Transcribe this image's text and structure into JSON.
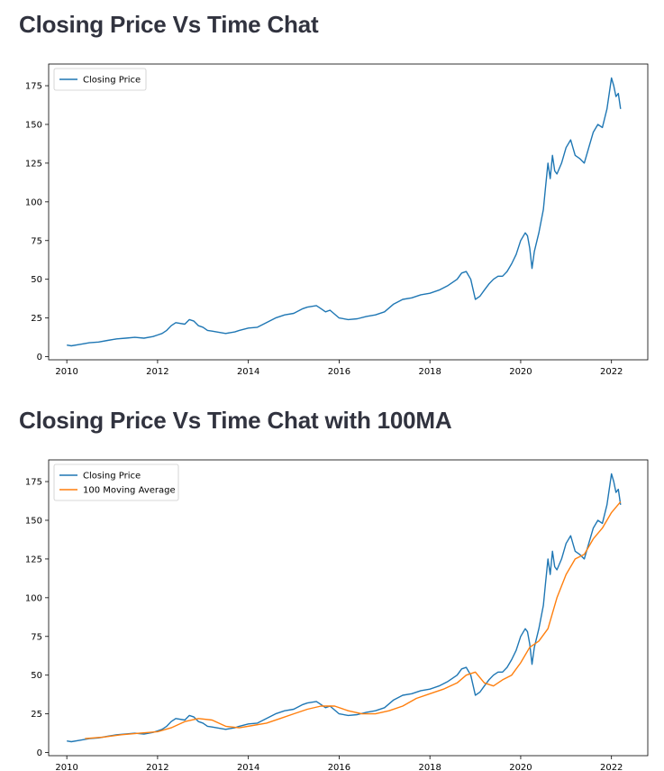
{
  "headings": {
    "chart1_title": "Closing Price Vs Time Chat",
    "chart2_title": "Closing Price Vs Time Chat with 100MA"
  },
  "chart_data": [
    {
      "type": "line",
      "title": "",
      "xlabel": "",
      "ylabel": "",
      "xlim": [
        2009.6,
        2022.8
      ],
      "ylim": [
        -2,
        189
      ],
      "xticks": [
        2010,
        2012,
        2014,
        2016,
        2018,
        2020,
        2022
      ],
      "yticks": [
        0,
        25,
        50,
        75,
        100,
        125,
        150,
        175
      ],
      "grid": false,
      "legend": "top-left",
      "series": [
        {
          "name": "Closing Price",
          "color": "#1f77b4",
          "x": [
            2010.0,
            2010.1,
            2010.3,
            2010.5,
            2010.7,
            2010.9,
            2011.1,
            2011.3,
            2011.5,
            2011.7,
            2011.9,
            2012.0,
            2012.1,
            2012.2,
            2012.3,
            2012.4,
            2012.6,
            2012.7,
            2012.8,
            2012.9,
            2013.0,
            2013.1,
            2013.2,
            2013.3,
            2013.4,
            2013.5,
            2013.6,
            2013.7,
            2013.8,
            2014.0,
            2014.2,
            2014.4,
            2014.6,
            2014.8,
            2015.0,
            2015.2,
            2015.3,
            2015.5,
            2015.6,
            2015.7,
            2015.8,
            2016.0,
            2016.2,
            2016.4,
            2016.6,
            2016.8,
            2017.0,
            2017.2,
            2017.4,
            2017.6,
            2017.8,
            2018.0,
            2018.2,
            2018.4,
            2018.6,
            2018.7,
            2018.8,
            2018.9,
            2019.0,
            2019.1,
            2019.2,
            2019.3,
            2019.4,
            2019.5,
            2019.6,
            2019.7,
            2019.8,
            2019.9,
            2020.0,
            2020.1,
            2020.15,
            2020.2,
            2020.25,
            2020.3,
            2020.4,
            2020.5,
            2020.55,
            2020.6,
            2020.65,
            2020.7,
            2020.75,
            2020.8,
            2020.9,
            2021.0,
            2021.1,
            2021.2,
            2021.3,
            2021.4,
            2021.5,
            2021.6,
            2021.7,
            2021.8,
            2021.9,
            2022.0,
            2022.05,
            2022.1,
            2022.15,
            2022.2
          ],
          "y": [
            7.5,
            7.0,
            8.0,
            9.0,
            9.5,
            10.5,
            11.5,
            12.0,
            12.5,
            12.0,
            13.0,
            14.0,
            15.0,
            17.0,
            20.0,
            22.0,
            21.0,
            24.0,
            23.0,
            20.0,
            19.0,
            17.0,
            16.5,
            16.0,
            15.5,
            15.0,
            15.5,
            16.0,
            17.0,
            18.5,
            19.0,
            22.0,
            25.0,
            27.0,
            28.0,
            31.0,
            32.0,
            33.0,
            31.0,
            29.0,
            30.0,
            25.0,
            24.0,
            24.5,
            26.0,
            27.0,
            29.0,
            34.0,
            37.0,
            38.0,
            40.0,
            41.0,
            43.0,
            46.0,
            50.0,
            54.0,
            55.0,
            50.0,
            37.0,
            39.0,
            43.0,
            47.0,
            50.0,
            52.0,
            52.0,
            55.0,
            60.0,
            66.0,
            75.0,
            80.0,
            78.0,
            70.0,
            57.0,
            68.0,
            80.0,
            95.0,
            110.0,
            125.0,
            115.0,
            130.0,
            120.0,
            118.0,
            125.0,
            135.0,
            140.0,
            130.0,
            128.0,
            125.0,
            135.0,
            145.0,
            150.0,
            148.0,
            160.0,
            180.0,
            175.0,
            168.0,
            170.0,
            160.0
          ]
        }
      ]
    },
    {
      "type": "line",
      "title": "",
      "xlabel": "",
      "ylabel": "",
      "xlim": [
        2009.6,
        2022.8
      ],
      "ylim": [
        -2,
        189
      ],
      "xticks": [
        2010,
        2012,
        2014,
        2016,
        2018,
        2020,
        2022
      ],
      "yticks": [
        0,
        25,
        50,
        75,
        100,
        125,
        150,
        175
      ],
      "grid": false,
      "legend": "top-left",
      "series": [
        {
          "name": "Closing Price",
          "color": "#1f77b4",
          "x": [
            2010.0,
            2010.1,
            2010.3,
            2010.5,
            2010.7,
            2010.9,
            2011.1,
            2011.3,
            2011.5,
            2011.7,
            2011.9,
            2012.0,
            2012.1,
            2012.2,
            2012.3,
            2012.4,
            2012.6,
            2012.7,
            2012.8,
            2012.9,
            2013.0,
            2013.1,
            2013.2,
            2013.3,
            2013.4,
            2013.5,
            2013.6,
            2013.7,
            2013.8,
            2014.0,
            2014.2,
            2014.4,
            2014.6,
            2014.8,
            2015.0,
            2015.2,
            2015.3,
            2015.5,
            2015.6,
            2015.7,
            2015.8,
            2016.0,
            2016.2,
            2016.4,
            2016.6,
            2016.8,
            2017.0,
            2017.2,
            2017.4,
            2017.6,
            2017.8,
            2018.0,
            2018.2,
            2018.4,
            2018.6,
            2018.7,
            2018.8,
            2018.9,
            2019.0,
            2019.1,
            2019.2,
            2019.3,
            2019.4,
            2019.5,
            2019.6,
            2019.7,
            2019.8,
            2019.9,
            2020.0,
            2020.1,
            2020.15,
            2020.2,
            2020.25,
            2020.3,
            2020.4,
            2020.5,
            2020.55,
            2020.6,
            2020.65,
            2020.7,
            2020.75,
            2020.8,
            2020.9,
            2021.0,
            2021.1,
            2021.2,
            2021.3,
            2021.4,
            2021.5,
            2021.6,
            2021.7,
            2021.8,
            2021.9,
            2022.0,
            2022.05,
            2022.1,
            2022.15,
            2022.2
          ],
          "y": [
            7.5,
            7.0,
            8.0,
            9.0,
            9.5,
            10.5,
            11.5,
            12.0,
            12.5,
            12.0,
            13.0,
            14.0,
            15.0,
            17.0,
            20.0,
            22.0,
            21.0,
            24.0,
            23.0,
            20.0,
            19.0,
            17.0,
            16.5,
            16.0,
            15.5,
            15.0,
            15.5,
            16.0,
            17.0,
            18.5,
            19.0,
            22.0,
            25.0,
            27.0,
            28.0,
            31.0,
            32.0,
            33.0,
            31.0,
            29.0,
            30.0,
            25.0,
            24.0,
            24.5,
            26.0,
            27.0,
            29.0,
            34.0,
            37.0,
            38.0,
            40.0,
            41.0,
            43.0,
            46.0,
            50.0,
            54.0,
            55.0,
            50.0,
            37.0,
            39.0,
            43.0,
            47.0,
            50.0,
            52.0,
            52.0,
            55.0,
            60.0,
            66.0,
            75.0,
            80.0,
            78.0,
            70.0,
            57.0,
            68.0,
            80.0,
            95.0,
            110.0,
            125.0,
            115.0,
            130.0,
            120.0,
            118.0,
            125.0,
            135.0,
            140.0,
            130.0,
            128.0,
            125.0,
            135.0,
            145.0,
            150.0,
            148.0,
            160.0,
            180.0,
            175.0,
            168.0,
            170.0,
            160.0
          ]
        },
        {
          "name": "100 Moving Average",
          "color": "#ff7f0e",
          "x": [
            2010.4,
            2010.8,
            2011.2,
            2011.6,
            2012.0,
            2012.3,
            2012.6,
            2012.9,
            2013.2,
            2013.5,
            2013.8,
            2014.1,
            2014.4,
            2014.7,
            2015.0,
            2015.3,
            2015.6,
            2015.9,
            2016.2,
            2016.5,
            2016.8,
            2017.1,
            2017.4,
            2017.7,
            2018.0,
            2018.3,
            2018.6,
            2018.8,
            2019.0,
            2019.2,
            2019.4,
            2019.6,
            2019.8,
            2020.0,
            2020.2,
            2020.4,
            2020.6,
            2020.8,
            2021.0,
            2021.2,
            2021.4,
            2021.6,
            2021.8,
            2022.0,
            2022.2
          ],
          "y": [
            9.0,
            10.0,
            11.5,
            12.5,
            13.5,
            16.0,
            20.0,
            22.0,
            21.0,
            17.0,
            16.0,
            17.5,
            19.0,
            22.0,
            25.0,
            28.0,
            30.0,
            30.0,
            27.0,
            25.0,
            25.0,
            27.0,
            30.0,
            35.0,
            38.0,
            41.0,
            45.0,
            50.0,
            52.0,
            45.0,
            43.0,
            47.0,
            50.0,
            58.0,
            68.0,
            72.0,
            80.0,
            100.0,
            115.0,
            125.0,
            128.0,
            138.0,
            145.0,
            155.0,
            162.0
          ]
        }
      ]
    }
  ]
}
